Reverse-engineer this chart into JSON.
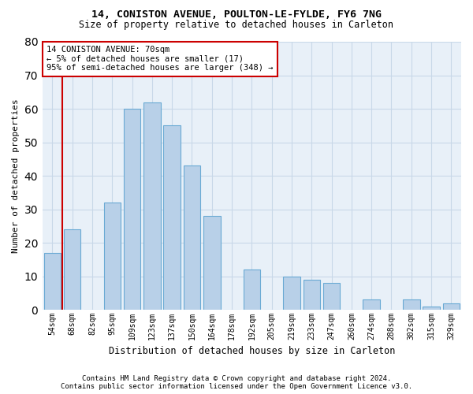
{
  "title1": "14, CONISTON AVENUE, POULTON-LE-FYLDE, FY6 7NG",
  "title2": "Size of property relative to detached houses in Carleton",
  "xlabel": "Distribution of detached houses by size in Carleton",
  "ylabel": "Number of detached properties",
  "categories": [
    "54sqm",
    "68sqm",
    "82sqm",
    "95sqm",
    "109sqm",
    "123sqm",
    "137sqm",
    "150sqm",
    "164sqm",
    "178sqm",
    "192sqm",
    "205sqm",
    "219sqm",
    "233sqm",
    "247sqm",
    "260sqm",
    "274sqm",
    "288sqm",
    "302sqm",
    "315sqm",
    "329sqm"
  ],
  "values": [
    17,
    24,
    0,
    32,
    60,
    62,
    55,
    43,
    28,
    0,
    12,
    0,
    10,
    9,
    8,
    0,
    3,
    0,
    3,
    1,
    2
  ],
  "bar_color": "#b8d0e8",
  "bar_edge_color": "#6aaad4",
  "annotation_text": "14 CONISTON AVENUE: 70sqm\n← 5% of detached houses are smaller (17)\n95% of semi-detached houses are larger (348) →",
  "annotation_box_color": "white",
  "annotation_box_edge_color": "#cc0000",
  "ylim": [
    0,
    80
  ],
  "yticks": [
    0,
    10,
    20,
    30,
    40,
    50,
    60,
    70,
    80
  ],
  "footer1": "Contains HM Land Registry data © Crown copyright and database right 2024.",
  "footer2": "Contains public sector information licensed under the Open Government Licence v3.0.",
  "bg_color": "white",
  "grid_color": "#c8d8e8",
  "plot_bg_color": "#e8f0f8"
}
